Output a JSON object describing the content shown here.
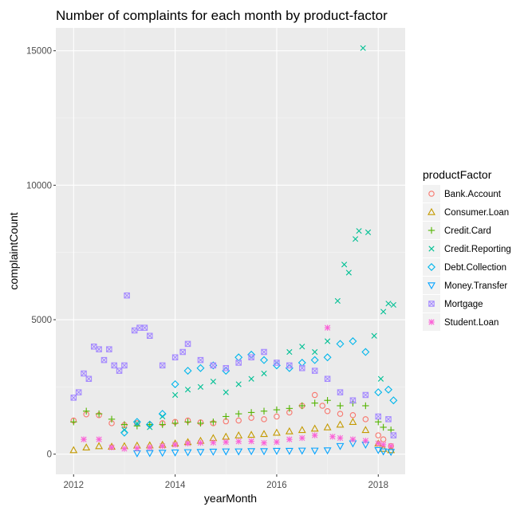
{
  "chart_data": {
    "type": "scatter",
    "title": "Number of complaints for each month by product-factor",
    "xlabel": "yearMonth",
    "ylabel": "complaintCount",
    "xlim": [
      2011.65,
      2018.53
    ],
    "ylim": [
      -750,
      15850
    ],
    "x_ticks": [
      2012,
      2014,
      2016,
      2018
    ],
    "x_tick_labels": [
      "2012",
      "2014",
      "2016",
      "2018"
    ],
    "y_ticks": [
      0,
      5000,
      10000,
      15000
    ],
    "y_tick_labels": [
      "0",
      "5000",
      "10000",
      "15000"
    ],
    "grid": true,
    "legend": {
      "title": "productFactor",
      "position": "right"
    },
    "series": [
      {
        "name": "Bank.Account",
        "color": "#F8766D",
        "shape": "circle",
        "points": [
          [
            2012.0,
            1250
          ],
          [
            2012.25,
            1480
          ],
          [
            2012.5,
            1450
          ],
          [
            2012.75,
            1150
          ],
          [
            2013.0,
            1080
          ],
          [
            2013.25,
            1150
          ],
          [
            2013.5,
            1100
          ],
          [
            2013.75,
            1150
          ],
          [
            2014.0,
            1200
          ],
          [
            2014.25,
            1250
          ],
          [
            2014.5,
            1180
          ],
          [
            2014.75,
            1150
          ],
          [
            2015.0,
            1220
          ],
          [
            2015.25,
            1250
          ],
          [
            2015.5,
            1350
          ],
          [
            2015.75,
            1300
          ],
          [
            2016.0,
            1400
          ],
          [
            2016.25,
            1550
          ],
          [
            2016.5,
            1800
          ],
          [
            2016.75,
            2200
          ],
          [
            2016.9,
            1800
          ],
          [
            2017.0,
            1600
          ],
          [
            2017.25,
            1500
          ],
          [
            2017.5,
            1450
          ],
          [
            2017.75,
            1300
          ],
          [
            2018.0,
            700
          ],
          [
            2018.1,
            550
          ],
          [
            2018.25,
            300
          ]
        ]
      },
      {
        "name": "Consumer.Loan",
        "color": "#C49A00",
        "shape": "triangle",
        "points": [
          [
            2012.0,
            150
          ],
          [
            2012.25,
            250
          ],
          [
            2012.5,
            300
          ],
          [
            2012.75,
            280
          ],
          [
            2013.0,
            300
          ],
          [
            2013.25,
            320
          ],
          [
            2013.5,
            330
          ],
          [
            2013.75,
            350
          ],
          [
            2014.0,
            400
          ],
          [
            2014.25,
            450
          ],
          [
            2014.5,
            500
          ],
          [
            2014.75,
            600
          ],
          [
            2015.0,
            650
          ],
          [
            2015.25,
            700
          ],
          [
            2015.5,
            720
          ],
          [
            2015.75,
            750
          ],
          [
            2016.0,
            800
          ],
          [
            2016.25,
            850
          ],
          [
            2016.5,
            900
          ],
          [
            2016.75,
            950
          ],
          [
            2017.0,
            1000
          ],
          [
            2017.25,
            1100
          ],
          [
            2017.5,
            1200
          ],
          [
            2017.75,
            900
          ],
          [
            2018.0,
            400
          ],
          [
            2018.1,
            200
          ],
          [
            2018.25,
            150
          ]
        ]
      },
      {
        "name": "Credit.Card",
        "color": "#53B400",
        "shape": "plus",
        "points": [
          [
            2012.0,
            1200
          ],
          [
            2012.25,
            1600
          ],
          [
            2012.5,
            1500
          ],
          [
            2012.75,
            1300
          ],
          [
            2013.0,
            1100
          ],
          [
            2013.25,
            1050
          ],
          [
            2013.5,
            1100
          ],
          [
            2013.75,
            1100
          ],
          [
            2014.0,
            1150
          ],
          [
            2014.25,
            1200
          ],
          [
            2014.5,
            1150
          ],
          [
            2014.75,
            1200
          ],
          [
            2015.0,
            1400
          ],
          [
            2015.25,
            1500
          ],
          [
            2015.5,
            1550
          ],
          [
            2015.75,
            1600
          ],
          [
            2016.0,
            1650
          ],
          [
            2016.25,
            1700
          ],
          [
            2016.5,
            1800
          ],
          [
            2016.75,
            1900
          ],
          [
            2017.0,
            2000
          ],
          [
            2017.25,
            1800
          ],
          [
            2017.5,
            1900
          ],
          [
            2017.75,
            1800
          ],
          [
            2018.0,
            1200
          ],
          [
            2018.1,
            1000
          ],
          [
            2018.25,
            900
          ]
        ]
      },
      {
        "name": "Credit.Reporting",
        "color": "#00C094",
        "shape": "x",
        "points": [
          [
            2013.0,
            900
          ],
          [
            2013.25,
            1150
          ],
          [
            2013.5,
            1000
          ],
          [
            2013.75,
            1400
          ],
          [
            2014.0,
            2200
          ],
          [
            2014.25,
            2400
          ],
          [
            2014.5,
            2500
          ],
          [
            2014.75,
            2700
          ],
          [
            2015.0,
            2300
          ],
          [
            2015.25,
            2600
          ],
          [
            2015.5,
            2800
          ],
          [
            2015.75,
            3000
          ],
          [
            2016.0,
            3400
          ],
          [
            2016.25,
            3800
          ],
          [
            2016.5,
            4000
          ],
          [
            2016.75,
            3800
          ],
          [
            2017.0,
            4200
          ],
          [
            2017.2,
            5700
          ],
          [
            2017.33,
            7050
          ],
          [
            2017.42,
            6750
          ],
          [
            2017.55,
            8000
          ],
          [
            2017.62,
            8300
          ],
          [
            2017.7,
            15100
          ],
          [
            2017.8,
            8250
          ],
          [
            2017.92,
            4400
          ],
          [
            2018.05,
            2800
          ],
          [
            2018.1,
            5300
          ],
          [
            2018.2,
            5600
          ],
          [
            2018.3,
            5550
          ]
        ]
      },
      {
        "name": "Debt.Collection",
        "color": "#00B6EB",
        "shape": "diamond",
        "points": [
          [
            2013.0,
            800
          ],
          [
            2013.25,
            1200
          ],
          [
            2013.5,
            1100
          ],
          [
            2013.75,
            1500
          ],
          [
            2014.0,
            2600
          ],
          [
            2014.25,
            3100
          ],
          [
            2014.5,
            3200
          ],
          [
            2014.75,
            3300
          ],
          [
            2015.0,
            3100
          ],
          [
            2015.25,
            3600
          ],
          [
            2015.5,
            3700
          ],
          [
            2015.75,
            3500
          ],
          [
            2016.0,
            3300
          ],
          [
            2016.25,
            3200
          ],
          [
            2016.5,
            3400
          ],
          [
            2016.75,
            3500
          ],
          [
            2017.0,
            3600
          ],
          [
            2017.25,
            4100
          ],
          [
            2017.5,
            4200
          ],
          [
            2017.75,
            3800
          ],
          [
            2018.0,
            2300
          ],
          [
            2018.2,
            2400
          ],
          [
            2018.3,
            2000
          ]
        ]
      },
      {
        "name": "Money.Transfer",
        "color": "#06A4FF",
        "shape": "triangle-down",
        "points": [
          [
            2013.25,
            30
          ],
          [
            2013.5,
            40
          ],
          [
            2013.75,
            50
          ],
          [
            2014.0,
            60
          ],
          [
            2014.25,
            70
          ],
          [
            2014.5,
            80
          ],
          [
            2014.75,
            90
          ],
          [
            2015.0,
            100
          ],
          [
            2015.25,
            100
          ],
          [
            2015.5,
            110
          ],
          [
            2015.75,
            110
          ],
          [
            2016.0,
            120
          ],
          [
            2016.25,
            120
          ],
          [
            2016.5,
            130
          ],
          [
            2016.75,
            130
          ],
          [
            2017.0,
            140
          ],
          [
            2017.25,
            300
          ],
          [
            2017.5,
            400
          ],
          [
            2017.75,
            350
          ],
          [
            2018.0,
            150
          ],
          [
            2018.1,
            100
          ],
          [
            2018.25,
            80
          ]
        ]
      },
      {
        "name": "Mortgage",
        "color": "#A58AFF",
        "shape": "square-x",
        "points": [
          [
            2012.0,
            2100
          ],
          [
            2012.1,
            2300
          ],
          [
            2012.2,
            3000
          ],
          [
            2012.3,
            2800
          ],
          [
            2012.4,
            4000
          ],
          [
            2012.5,
            3900
          ],
          [
            2012.6,
            3500
          ],
          [
            2012.7,
            3900
          ],
          [
            2012.8,
            3300
          ],
          [
            2012.9,
            3100
          ],
          [
            2013.0,
            3300
          ],
          [
            2013.05,
            5900
          ],
          [
            2013.2,
            4600
          ],
          [
            2013.3,
            4700
          ],
          [
            2013.4,
            4700
          ],
          [
            2013.5,
            4400
          ],
          [
            2013.75,
            3300
          ],
          [
            2014.0,
            3600
          ],
          [
            2014.15,
            3800
          ],
          [
            2014.25,
            4100
          ],
          [
            2014.5,
            3500
          ],
          [
            2014.75,
            3300
          ],
          [
            2015.0,
            3200
          ],
          [
            2015.25,
            3400
          ],
          [
            2015.5,
            3600
          ],
          [
            2015.75,
            3800
          ],
          [
            2016.0,
            3400
          ],
          [
            2016.25,
            3300
          ],
          [
            2016.5,
            3200
          ],
          [
            2016.75,
            3100
          ],
          [
            2017.0,
            2800
          ],
          [
            2017.25,
            2300
          ],
          [
            2017.5,
            2000
          ],
          [
            2017.75,
            2200
          ],
          [
            2018.0,
            1400
          ],
          [
            2018.2,
            1300
          ],
          [
            2018.3,
            700
          ]
        ]
      },
      {
        "name": "Student.Loan",
        "color": "#FB61D7",
        "shape": "asterisk",
        "points": [
          [
            2012.2,
            550
          ],
          [
            2012.5,
            550
          ],
          [
            2012.75,
            250
          ],
          [
            2013.0,
            200
          ],
          [
            2013.25,
            220
          ],
          [
            2013.5,
            250
          ],
          [
            2013.75,
            300
          ],
          [
            2014.0,
            350
          ],
          [
            2014.25,
            400
          ],
          [
            2014.5,
            420
          ],
          [
            2014.75,
            430
          ],
          [
            2015.0,
            450
          ],
          [
            2015.25,
            470
          ],
          [
            2015.5,
            480
          ],
          [
            2015.75,
            420
          ],
          [
            2016.0,
            450
          ],
          [
            2016.25,
            550
          ],
          [
            2016.5,
            600
          ],
          [
            2016.75,
            700
          ],
          [
            2017.0,
            4700
          ],
          [
            2017.1,
            650
          ],
          [
            2017.25,
            600
          ],
          [
            2017.5,
            550
          ],
          [
            2017.75,
            500
          ],
          [
            2018.0,
            400
          ],
          [
            2018.1,
            350
          ],
          [
            2018.25,
            300
          ]
        ]
      }
    ]
  }
}
